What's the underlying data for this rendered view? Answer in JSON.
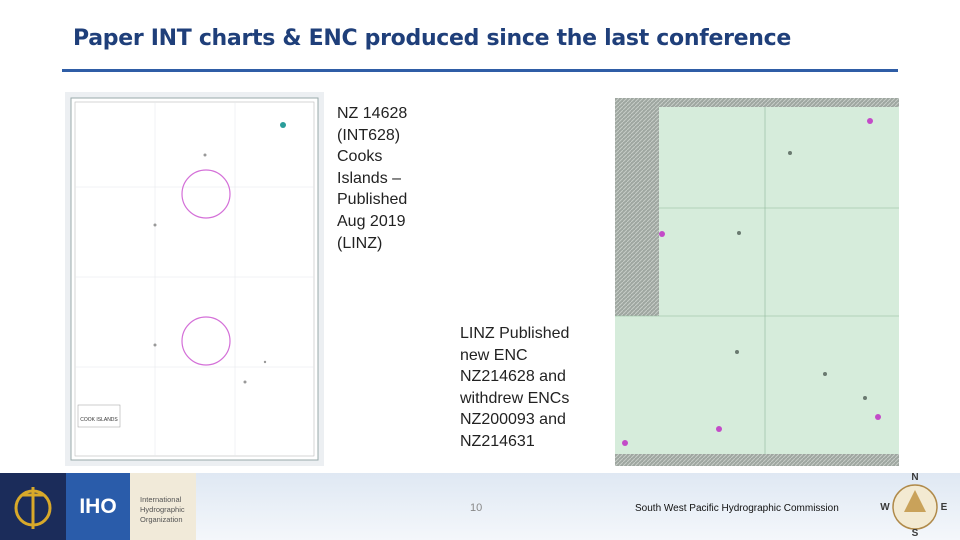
{
  "header": {
    "title": "Paper INT charts & ENC produced since the last conference"
  },
  "captions": [
    {
      "lines": [
        "NZ 14628",
        "(INT628)",
        "Cooks",
        "Islands –",
        "Published",
        "Aug 2019",
        "(LINZ)"
      ]
    },
    {
      "lines": [
        "LINZ Published",
        "new ENC",
        "NZ214628 and",
        "withdrew  ENCs",
        "NZ200093 and",
        "NZ214631"
      ]
    }
  ],
  "paper_chart": {
    "label": "COOK ISLANDS"
  },
  "footer": {
    "iho_abbr": "IHO",
    "iho_name": [
      "International",
      "Hydrographic",
      "Organization"
    ],
    "page_number": "10",
    "commission": "South West Pacific Hydrographic Commission",
    "compass": [
      "N",
      "E",
      "S",
      "W"
    ]
  }
}
